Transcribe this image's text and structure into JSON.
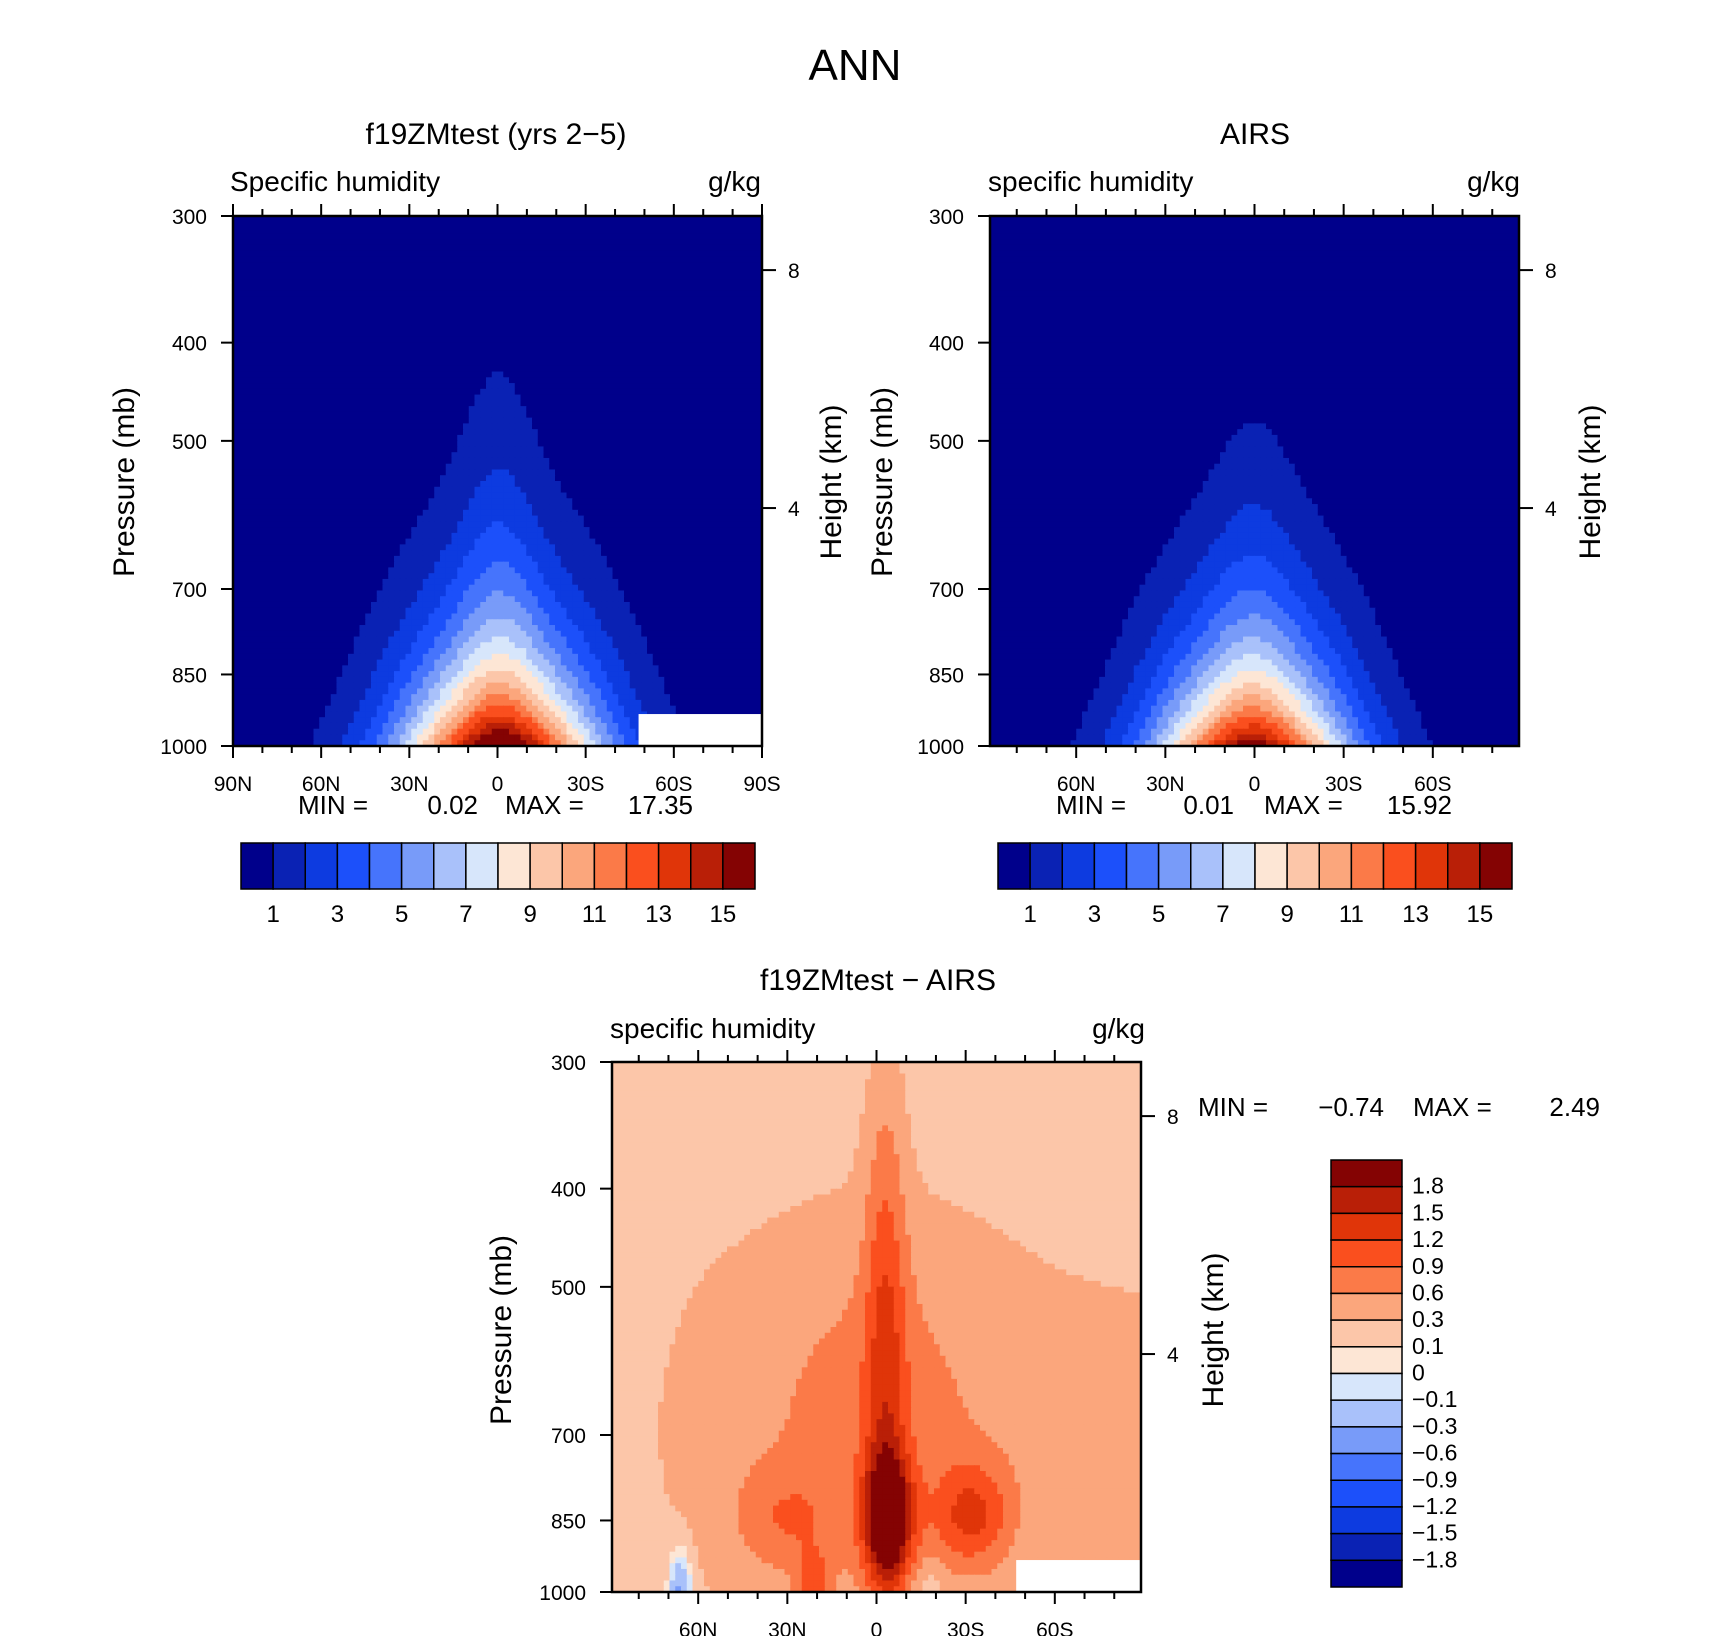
{
  "figure": {
    "title": "ANN"
  },
  "chart_data": [
    {
      "type": "heatmap",
      "title": "f19ZMtest (yrs 2−5)",
      "left_label": "Specific humidity",
      "right_label": "g/kg",
      "ylabel": "Pressure (mb)",
      "y2label": "Height (km)",
      "x_ticks": [
        "90N",
        "60N",
        "30N",
        "0",
        "30S",
        "60S",
        "90S"
      ],
      "x_tick_values": [
        90,
        60,
        30,
        0,
        -30,
        -60,
        -90
      ],
      "xlim": [
        90,
        -90
      ],
      "y_ticks": [
        300,
        400,
        500,
        700,
        850,
        1000
      ],
      "ylim": [
        1000,
        300
      ],
      "y_scale": "log",
      "y2_ticks": [
        8,
        4
      ],
      "stats": {
        "min_label": "MIN =",
        "min": "0.02",
        "max_label": "MAX =",
        "max": "17.35"
      },
      "levels": [
        1,
        2,
        3,
        4,
        5,
        6,
        7,
        8,
        9,
        10,
        11,
        12,
        13,
        14,
        15
      ],
      "colorbar_labels": [
        "1",
        "3",
        "5",
        "7",
        "9",
        "11",
        "13",
        "15"
      ],
      "colors": [
        "#00008b",
        "#0a22b4",
        "#0d3be0",
        "#1c50fa",
        "#4674fc",
        "#789bf9",
        "#a9c1fa",
        "#d7e6fb",
        "#fde6d5",
        "#fcc6a9",
        "#fba67c",
        "#fb7a48",
        "#fa4f1e",
        "#e03509",
        "#b91f07",
        "#840303"
      ],
      "peak": {
        "lat": -2,
        "value": 17.35
      },
      "missing_region": {
        "lat_from": -48,
        "lat_to": -90,
        "p_from": 930,
        "p_to": 1000
      }
    },
    {
      "type": "heatmap",
      "title": "AIRS",
      "left_label": "specific humidity",
      "right_label": "g/kg",
      "ylabel": "Pressure (mb)",
      "y2label": "Height (km)",
      "x_ticks": [
        "60N",
        "30N",
        "0",
        "30S",
        "60S"
      ],
      "x_tick_values": [
        60,
        30,
        0,
        -30,
        -60
      ],
      "xlim": [
        89,
        -89
      ],
      "y_ticks": [
        300,
        400,
        500,
        700,
        850,
        1000
      ],
      "ylim": [
        1000,
        300
      ],
      "y_scale": "log",
      "y2_ticks": [
        8,
        4
      ],
      "stats": {
        "min_label": "MIN =",
        "min": "0.01",
        "max_label": "MAX =",
        "max": "15.92"
      },
      "levels": [
        1,
        2,
        3,
        4,
        5,
        6,
        7,
        8,
        9,
        10,
        11,
        12,
        13,
        14,
        15
      ],
      "colorbar_labels": [
        "1",
        "3",
        "5",
        "7",
        "9",
        "11",
        "13",
        "15"
      ],
      "colors": [
        "#00008b",
        "#0a22b4",
        "#0d3be0",
        "#1c50fa",
        "#4674fc",
        "#789bf9",
        "#a9c1fa",
        "#d7e6fb",
        "#fde6d5",
        "#fcc6a9",
        "#fba67c",
        "#fb7a48",
        "#fa4f1e",
        "#e03509",
        "#b91f07",
        "#840303"
      ],
      "peak": {
        "lat": 2,
        "value": 15.92
      }
    },
    {
      "type": "heatmap",
      "title": "f19ZMtest − AIRS",
      "left_label": "specific humidity",
      "right_label": "g/kg",
      "ylabel": "Pressure (mb)",
      "y2label": "Height (km)",
      "x_ticks": [
        "60N",
        "30N",
        "0",
        "30S",
        "60S"
      ],
      "x_tick_values": [
        60,
        30,
        0,
        -30,
        -60
      ],
      "xlim": [
        89,
        -89
      ],
      "y_ticks": [
        300,
        400,
        500,
        700,
        850,
        1000
      ],
      "ylim": [
        1000,
        300
      ],
      "y_scale": "log",
      "y2_ticks": [
        8,
        4
      ],
      "stats": {
        "min_label": "MIN =",
        "min": "−0.74",
        "max_label": "MAX =",
        "max": "2.49"
      },
      "levels": [
        -1.8,
        -1.5,
        -1.2,
        -0.9,
        -0.6,
        -0.3,
        -0.1,
        0,
        0.1,
        0.3,
        0.6,
        0.9,
        1.2,
        1.5,
        1.8
      ],
      "colorbar_labels": [
        "1.8",
        "1.5",
        "1.2",
        "0.9",
        "0.6",
        "0.3",
        "0.1",
        "0",
        "−0.1",
        "−0.3",
        "−0.6",
        "−0.9",
        "−1.2",
        "−1.5",
        "−1.8"
      ],
      "colors": [
        "#00008b",
        "#0a22b4",
        "#0d3be0",
        "#1c50fa",
        "#4674fc",
        "#789bf9",
        "#a9c1fa",
        "#d7e6fb",
        "#fde6d5",
        "#fcc6a9",
        "#fba67c",
        "#fb7a48",
        "#fa4f1e",
        "#e03509",
        "#b91f07",
        "#840303"
      ],
      "missing_region": {
        "lat_from": -47,
        "lat_to": -89,
        "p_from": 930,
        "p_to": 1000
      }
    }
  ]
}
